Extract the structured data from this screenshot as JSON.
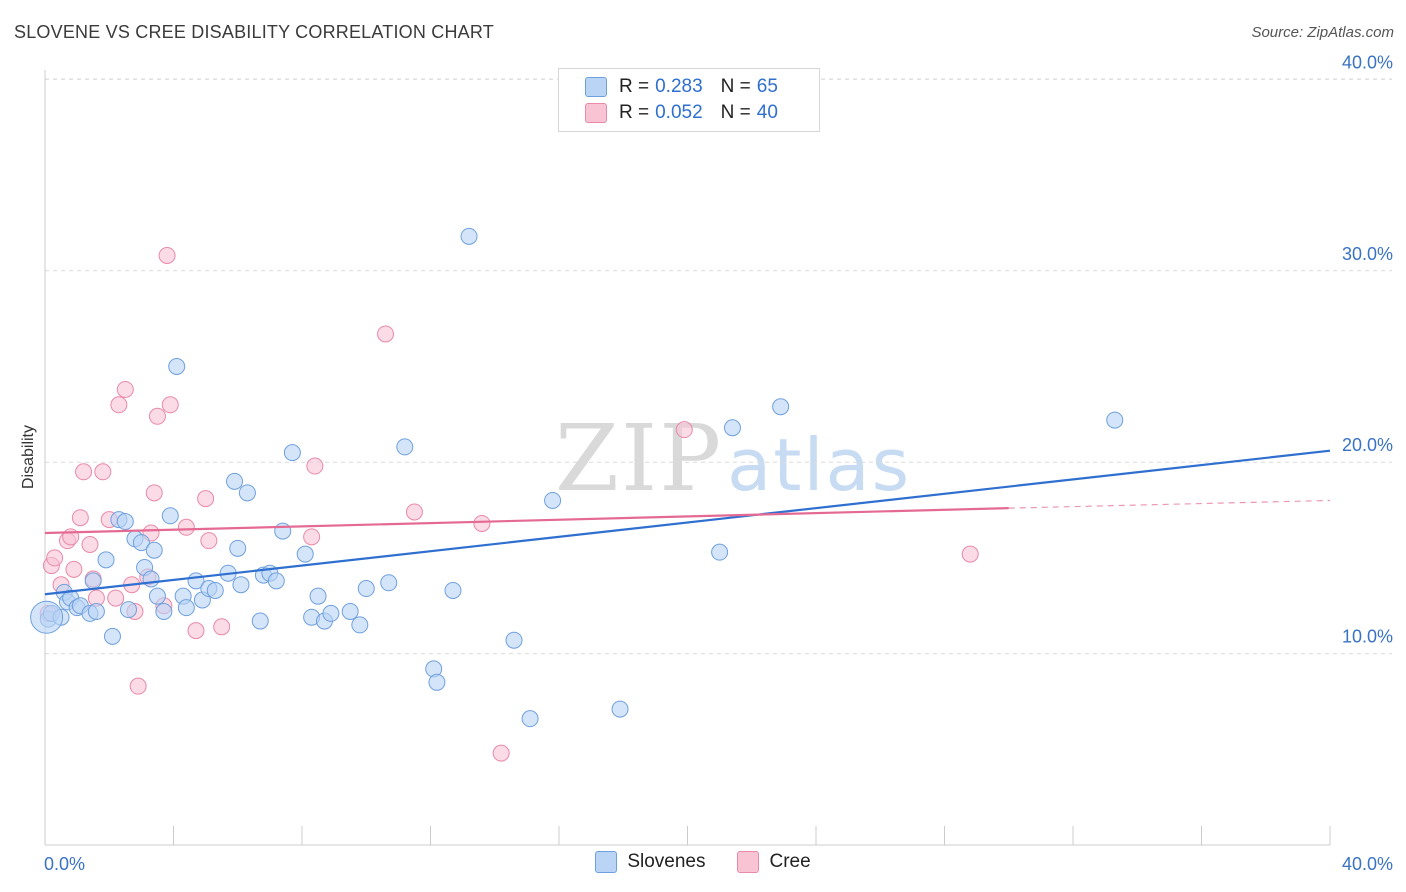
{
  "header": {
    "title": "SLOVENE VS CREE DISABILITY CORRELATION CHART",
    "source": "Source: ZipAtlas.com"
  },
  "watermark": {
    "zip": "ZIP",
    "atlas": "atlas"
  },
  "colors": {
    "slovenes_fill": "#b9d4f5",
    "slovenes_stroke": "#6fa0de",
    "slovenes_line": "#2f6fd0",
    "cree_fill": "#f8c3d3",
    "cree_stroke": "#e98aa8",
    "cree_line": "#e46a93",
    "axis_text": "#3a73c4",
    "grid": "#dcdcdc"
  },
  "legend": {
    "rows": [
      {
        "r_label": "R =",
        "r_value": "0.283",
        "n_label": "N =",
        "n_value": "65"
      },
      {
        "r_label": "R =",
        "r_value": "0.052",
        "n_label": "N =",
        "n_value": "40"
      }
    ]
  },
  "bottom_legend": {
    "slovenes": "Slovenes",
    "cree": "Cree"
  },
  "chart_data": {
    "type": "scatter",
    "title": "SLOVENE VS CREE DISABILITY CORRELATION CHART",
    "xlabel": "",
    "ylabel": "Disability",
    "xlim": [
      0,
      40
    ],
    "ylim": [
      0,
      42
    ],
    "x_tick_labels": [
      "0.0%",
      "40.0%"
    ],
    "y_ticks": [
      10,
      20,
      30,
      40
    ],
    "y_tick_labels": [
      "10.0%",
      "20.0%",
      "30.0%",
      "40.0%"
    ],
    "grid": true,
    "series": [
      {
        "name": "Slovenes",
        "r": 0.283,
        "n": 65,
        "trend": {
          "x": [
            0,
            40
          ],
          "y": [
            13.1,
            20.6
          ]
        },
        "points": [
          [
            0.1,
            11.8
          ],
          [
            0.2,
            12.1
          ],
          [
            0.5,
            11.9
          ],
          [
            0.6,
            13.2
          ],
          [
            0.7,
            12.7
          ],
          [
            0.8,
            12.9
          ],
          [
            1.0,
            12.4
          ],
          [
            1.1,
            12.5
          ],
          [
            1.4,
            12.1
          ],
          [
            1.5,
            13.8
          ],
          [
            1.6,
            12.2
          ],
          [
            1.9,
            14.9
          ],
          [
            2.1,
            10.9
          ],
          [
            2.3,
            17.0
          ],
          [
            2.5,
            16.9
          ],
          [
            2.6,
            12.3
          ],
          [
            2.8,
            16.0
          ],
          [
            3.0,
            15.8
          ],
          [
            3.1,
            14.5
          ],
          [
            3.3,
            13.9
          ],
          [
            3.4,
            15.4
          ],
          [
            3.5,
            13.0
          ],
          [
            3.7,
            12.2
          ],
          [
            3.9,
            17.2
          ],
          [
            4.1,
            25.0
          ],
          [
            4.3,
            13.0
          ],
          [
            4.4,
            12.4
          ],
          [
            4.7,
            13.8
          ],
          [
            4.9,
            12.8
          ],
          [
            5.1,
            13.4
          ],
          [
            5.3,
            13.3
          ],
          [
            5.7,
            14.2
          ],
          [
            5.9,
            19.0
          ],
          [
            6.0,
            15.5
          ],
          [
            6.1,
            13.6
          ],
          [
            6.3,
            18.4
          ],
          [
            6.7,
            11.7
          ],
          [
            6.8,
            14.1
          ],
          [
            7.0,
            14.2
          ],
          [
            7.2,
            13.8
          ],
          [
            7.4,
            16.4
          ],
          [
            7.7,
            20.5
          ],
          [
            8.1,
            15.2
          ],
          [
            8.3,
            11.9
          ],
          [
            8.5,
            13.0
          ],
          [
            8.7,
            11.7
          ],
          [
            8.9,
            12.1
          ],
          [
            9.5,
            12.2
          ],
          [
            9.8,
            11.5
          ],
          [
            10.0,
            13.4
          ],
          [
            10.7,
            13.7
          ],
          [
            11.2,
            20.8
          ],
          [
            12.1,
            9.2
          ],
          [
            12.2,
            8.5
          ],
          [
            12.7,
            13.3
          ],
          [
            13.2,
            31.8
          ],
          [
            14.6,
            10.7
          ],
          [
            15.1,
            6.6
          ],
          [
            15.8,
            18.0
          ],
          [
            17.9,
            7.1
          ],
          [
            21.0,
            15.3
          ],
          [
            21.4,
            21.8
          ],
          [
            22.9,
            22.9
          ],
          [
            33.3,
            22.2
          ],
          [
            0.05,
            11.9
          ]
        ]
      },
      {
        "name": "Cree",
        "r": 0.052,
        "n": 40,
        "trend": {
          "x": [
            0,
            30
          ],
          "y": [
            16.3,
            17.6
          ]
        },
        "trend_dashed": {
          "x": [
            30,
            40
          ],
          "y": [
            17.6,
            18.0
          ]
        },
        "points": [
          [
            0.1,
            12.1
          ],
          [
            0.2,
            14.6
          ],
          [
            0.3,
            15.0
          ],
          [
            0.5,
            13.6
          ],
          [
            0.7,
            15.9
          ],
          [
            0.8,
            16.1
          ],
          [
            0.9,
            14.4
          ],
          [
            1.1,
            17.1
          ],
          [
            1.2,
            19.5
          ],
          [
            1.4,
            15.7
          ],
          [
            1.5,
            13.9
          ],
          [
            1.6,
            12.9
          ],
          [
            1.8,
            19.5
          ],
          [
            2.0,
            17.0
          ],
          [
            2.2,
            12.9
          ],
          [
            2.3,
            23.0
          ],
          [
            2.5,
            23.8
          ],
          [
            2.7,
            13.6
          ],
          [
            2.8,
            12.2
          ],
          [
            2.9,
            8.3
          ],
          [
            3.2,
            14.0
          ],
          [
            3.3,
            16.3
          ],
          [
            3.4,
            18.4
          ],
          [
            3.5,
            22.4
          ],
          [
            3.7,
            12.5
          ],
          [
            3.8,
            30.8
          ],
          [
            3.9,
            23.0
          ],
          [
            4.4,
            16.6
          ],
          [
            4.7,
            11.2
          ],
          [
            5.0,
            18.1
          ],
          [
            5.1,
            15.9
          ],
          [
            5.5,
            11.4
          ],
          [
            8.3,
            16.1
          ],
          [
            8.4,
            19.8
          ],
          [
            10.6,
            26.7
          ],
          [
            11.5,
            17.4
          ],
          [
            13.6,
            16.8
          ],
          [
            14.2,
            4.8
          ],
          [
            19.9,
            21.7
          ],
          [
            28.8,
            15.2
          ]
        ]
      }
    ]
  }
}
